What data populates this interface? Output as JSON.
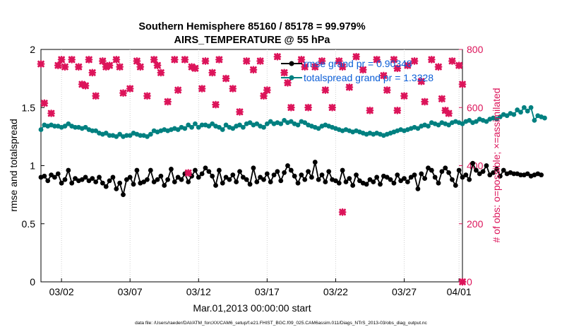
{
  "chart_data": {
    "type": "line",
    "title": "Southern Hemisphere 85160 / 85178 = 99.979%",
    "subtitle": "AIRS_TEMPERATURE @ 55 hPa",
    "xlabel": "Mar.01,2013 00:00:00 start",
    "ylabel_left": "rmse and totalspread",
    "ylabel_right": "# of obs: o=possible; ×=assimilated",
    "footer": "data file: /Users/raeder/DAI/ATM_forcXX/CAM6_setup/f.e21.FHIST_BGC.f09_025.CAM6assim.011/Diags_NTrS_2013-03/obs_diag_output.nc",
    "x_range": [
      0.5,
      31.25
    ],
    "ylim_left": [
      0,
      2
    ],
    "ylim_right": [
      0,
      800
    ],
    "x_ticks": [
      {
        "v": 2,
        "label": "03/02"
      },
      {
        "v": 7,
        "label": "03/07"
      },
      {
        "v": 12,
        "label": "03/12"
      },
      {
        "v": 17,
        "label": "03/17"
      },
      {
        "v": 22,
        "label": "03/22"
      },
      {
        "v": 27,
        "label": "03/27"
      },
      {
        "v": 31,
        "label": "04/01"
      }
    ],
    "y_ticks_left": [
      {
        "v": 0,
        "label": "0"
      },
      {
        "v": 0.5,
        "label": "0.5"
      },
      {
        "v": 1,
        "label": "1"
      },
      {
        "v": 1.5,
        "label": "1.5"
      },
      {
        "v": 2,
        "label": "2"
      }
    ],
    "y_ticks_right": [
      {
        "v": 0,
        "label": "0"
      },
      {
        "v": 200,
        "label": "200"
      },
      {
        "v": 400,
        "label": "400"
      },
      {
        "v": 600,
        "label": "600"
      },
      {
        "v": 800,
        "label": "800"
      }
    ],
    "legend_position": "top-right",
    "series": [
      {
        "name": "rmse grand pr = 0.90348",
        "color": "#000000",
        "x_start": 0.5,
        "x_step": 0.25,
        "values": [
          0.9,
          0.91,
          0.87,
          0.92,
          0.9,
          0.93,
          0.85,
          0.88,
          0.96,
          0.85,
          0.89,
          0.87,
          0.88,
          0.9,
          0.87,
          0.89,
          0.86,
          0.9,
          0.85,
          0.82,
          0.87,
          0.9,
          0.8,
          0.85,
          0.75,
          0.88,
          0.9,
          0.84,
          0.96,
          0.85,
          0.86,
          0.88,
          0.96,
          0.86,
          0.88,
          0.91,
          0.83,
          0.88,
          0.97,
          0.86,
          0.9,
          0.88,
          0.93,
          0.86,
          0.91,
          0.96,
          0.9,
          0.93,
          0.98,
          0.95,
          0.91,
          0.83,
          0.96,
          0.85,
          0.9,
          0.88,
          0.92,
          0.86,
          0.95,
          0.9,
          0.88,
          0.84,
          0.98,
          0.86,
          0.9,
          0.88,
          0.93,
          0.86,
          0.92,
          0.95,
          0.87,
          0.94,
          1.0,
          0.96,
          0.91,
          0.85,
          0.92,
          0.88,
          0.95,
          0.9,
          1.03,
          0.88,
          0.92,
          0.86,
          0.95,
          0.88,
          0.87,
          0.85,
          0.96,
          0.86,
          0.89,
          0.83,
          0.92,
          0.87,
          0.85,
          0.84,
          0.88,
          0.86,
          0.9,
          0.84,
          0.91,
          0.9,
          0.88,
          0.85,
          0.92,
          0.87,
          0.89,
          0.86,
          0.9,
          0.92,
          0.8,
          0.93,
          0.89,
          0.98,
          0.96,
          0.9,
          0.85,
          0.95,
          0.98,
          0.94,
          0.88,
          0.83,
          0.96,
          0.9,
          0.92,
          0.88,
          1.02,
          0.96,
          0.93,
          0.95,
          1.0,
          0.92,
          0.94,
          0.97,
          0.91,
          0.96,
          0.93,
          0.94,
          0.93,
          0.93,
          0.92,
          0.92,
          0.93,
          0.91,
          0.92,
          0.93,
          0.92
        ]
      },
      {
        "name": "totalspread grand pr = 1.3328",
        "color": "#008080",
        "x_start": 0.5,
        "x_step": 0.25,
        "values": [
          1.31,
          1.35,
          1.34,
          1.35,
          1.34,
          1.34,
          1.33,
          1.34,
          1.36,
          1.34,
          1.33,
          1.33,
          1.32,
          1.33,
          1.31,
          1.3,
          1.3,
          1.28,
          1.27,
          1.28,
          1.26,
          1.26,
          1.25,
          1.27,
          1.25,
          1.26,
          1.26,
          1.28,
          1.27,
          1.26,
          1.26,
          1.25,
          1.27,
          1.3,
          1.29,
          1.3,
          1.31,
          1.3,
          1.31,
          1.32,
          1.31,
          1.33,
          1.32,
          1.35,
          1.33,
          1.36,
          1.33,
          1.35,
          1.35,
          1.34,
          1.36,
          1.34,
          1.33,
          1.31,
          1.35,
          1.33,
          1.32,
          1.34,
          1.35,
          1.33,
          1.36,
          1.37,
          1.35,
          1.36,
          1.34,
          1.33,
          1.36,
          1.38,
          1.36,
          1.37,
          1.36,
          1.39,
          1.37,
          1.38,
          1.36,
          1.35,
          1.38,
          1.37,
          1.35,
          1.34,
          1.33,
          1.32,
          1.34,
          1.35,
          1.34,
          1.33,
          1.32,
          1.31,
          1.3,
          1.31,
          1.3,
          1.29,
          1.3,
          1.29,
          1.28,
          1.27,
          1.28,
          1.27,
          1.28,
          1.27,
          1.26,
          1.27,
          1.28,
          1.29,
          1.3,
          1.31,
          1.3,
          1.31,
          1.32,
          1.33,
          1.32,
          1.34,
          1.35,
          1.34,
          1.37,
          1.36,
          1.35,
          1.37,
          1.36,
          1.35,
          1.37,
          1.38,
          1.37,
          1.36,
          1.38,
          1.39,
          1.37,
          1.38,
          1.4,
          1.39,
          1.38,
          1.4,
          1.41,
          1.4,
          1.42,
          1.44,
          1.43,
          1.45,
          1.44,
          1.48,
          1.46,
          1.5,
          1.47,
          1.5,
          1.39,
          1.43,
          1.42,
          1.41
        ]
      }
    ],
    "obs_possible": {
      "color": "#dc145a",
      "points": [
        [
          0.5,
          750
        ],
        [
          0.75,
          615
        ],
        [
          1.25,
          580
        ],
        [
          1.75,
          745
        ],
        [
          2,
          765
        ],
        [
          2.25,
          740
        ],
        [
          2.75,
          765
        ],
        [
          3.25,
          740
        ],
        [
          3.5,
          680
        ],
        [
          3.75,
          675
        ],
        [
          4,
          765
        ],
        [
          4.25,
          720
        ],
        [
          4.5,
          640
        ],
        [
          5,
          760
        ],
        [
          5.25,
          740
        ],
        [
          5.5,
          745
        ],
        [
          6,
          765
        ],
        [
          6.25,
          740
        ],
        [
          6.5,
          650
        ],
        [
          7,
          665
        ],
        [
          7.5,
          760
        ],
        [
          7.75,
          740
        ],
        [
          8.25,
          640
        ],
        [
          8.75,
          765
        ],
        [
          9,
          745
        ],
        [
          9.25,
          720
        ],
        [
          9.75,
          620
        ],
        [
          10.25,
          765
        ],
        [
          10.5,
          660
        ],
        [
          11,
          765
        ],
        [
          11.5,
          740
        ],
        [
          11.75,
          735
        ],
        [
          12.25,
          665
        ],
        [
          12.5,
          760
        ],
        [
          13,
          720
        ],
        [
          13.25,
          610
        ],
        [
          13.5,
          765
        ],
        [
          14,
          700
        ],
        [
          14.5,
          665
        ],
        [
          15,
          585
        ],
        [
          15.5,
          760
        ],
        [
          16,
          730
        ],
        [
          16.5,
          760
        ],
        [
          16.75,
          640
        ],
        [
          17,
          660
        ],
        [
          17.75,
          775
        ],
        [
          18.25,
          720
        ],
        [
          18.5,
          685
        ],
        [
          18.75,
          600
        ],
        [
          19.5,
          765
        ],
        [
          19.75,
          740
        ],
        [
          20,
          600
        ],
        [
          20.5,
          740
        ],
        [
          21,
          760
        ],
        [
          21.25,
          660
        ],
        [
          21.75,
          600
        ],
        [
          22.25,
          760
        ],
        [
          22.5,
          740
        ],
        [
          23,
          670
        ],
        [
          23.5,
          775
        ],
        [
          24,
          730
        ],
        [
          24.5,
          590
        ],
        [
          25,
          765
        ],
        [
          25.5,
          710
        ],
        [
          25.75,
          660
        ],
        [
          26.25,
          765
        ],
        [
          26.5,
          735
        ],
        [
          27,
          640
        ],
        [
          27.25,
          745
        ],
        [
          27.75,
          760
        ],
        [
          28.25,
          690
        ],
        [
          28.5,
          620
        ],
        [
          29,
          765
        ],
        [
          29.5,
          740
        ],
        [
          29.75,
          630
        ],
        [
          30,
          590
        ],
        [
          30.5,
          760
        ],
        [
          31,
          745
        ],
        [
          31.25,
          680
        ]
      ]
    },
    "obs_assimilated": {
      "color": "#dc145a",
      "points": [
        [
          11.25,
          375
        ],
        [
          22.5,
          240
        ],
        [
          26.5,
          590
        ],
        [
          30.25,
          580
        ],
        [
          31.25,
          0
        ]
      ]
    }
  }
}
